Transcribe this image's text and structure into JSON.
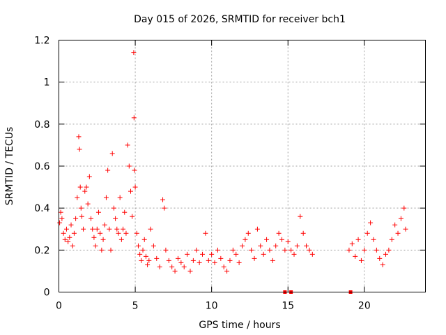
{
  "chart_data": {
    "type": "scatter",
    "title": "Day 015 of 2026, SRMTID for receiver bch1",
    "xlabel": "GPS time / hours",
    "ylabel": "SRMTID / TECUs",
    "xlim": [
      0,
      24
    ],
    "ylim": [
      0,
      1.2
    ],
    "xticks": [
      0,
      5,
      10,
      15,
      20
    ],
    "xtick_labels": [
      "0",
      "5",
      "10",
      "15",
      "20"
    ],
    "yticks": [
      0,
      0.2,
      0.4,
      0.6,
      0.8,
      1.0,
      1.2
    ],
    "ytick_labels": [
      "0",
      "0.2",
      "0.4",
      "0.6",
      "0.8",
      "1",
      "1.2"
    ],
    "grid": true,
    "marker": "+",
    "series": [
      {
        "name": "SRMTID",
        "color": "#ff0000",
        "x": [
          0.05,
          0.12,
          0.2,
          0.3,
          0.4,
          0.5,
          0.6,
          0.7,
          0.8,
          0.9,
          1.0,
          1.1,
          1.2,
          1.3,
          1.35,
          1.4,
          1.45,
          1.5,
          1.6,
          1.7,
          1.8,
          1.9,
          2.0,
          2.1,
          2.2,
          2.3,
          2.4,
          2.5,
          2.6,
          2.7,
          2.8,
          2.9,
          3.0,
          3.1,
          3.2,
          3.3,
          3.4,
          3.5,
          3.6,
          3.7,
          3.8,
          3.9,
          4.0,
          4.1,
          4.2,
          4.3,
          4.4,
          4.5,
          4.6,
          4.7,
          4.8,
          4.9,
          4.92,
          4.95,
          5.0,
          5.1,
          5.2,
          5.3,
          5.4,
          5.5,
          5.6,
          5.7,
          5.8,
          5.9,
          6.0,
          6.2,
          6.4,
          6.6,
          6.8,
          6.9,
          7.0,
          7.2,
          7.4,
          7.6,
          7.8,
          8.0,
          8.2,
          8.4,
          8.6,
          8.8,
          9.0,
          9.2,
          9.4,
          9.6,
          9.8,
          10.0,
          10.2,
          10.4,
          10.6,
          10.8,
          11.0,
          11.2,
          11.4,
          11.6,
          11.8,
          12.0,
          12.2,
          12.4,
          12.6,
          12.8,
          13.0,
          13.2,
          13.4,
          13.6,
          13.8,
          14.0,
          14.2,
          14.4,
          14.6,
          14.8,
          15.0,
          15.2,
          15.4,
          15.6,
          15.8,
          16.0,
          16.2,
          16.4,
          16.6,
          19.0,
          19.2,
          19.4,
          19.6,
          19.8,
          20.0,
          20.2,
          20.4,
          20.6,
          20.8,
          21.0,
          21.2,
          21.4,
          21.6,
          21.8,
          22.0,
          22.2,
          22.4,
          22.6,
          22.7
        ],
        "y": [
          0.33,
          0.38,
          0.35,
          0.28,
          0.25,
          0.3,
          0.24,
          0.26,
          0.32,
          0.22,
          0.28,
          0.35,
          0.45,
          0.74,
          0.68,
          0.5,
          0.4,
          0.36,
          0.3,
          0.48,
          0.5,
          0.42,
          0.55,
          0.35,
          0.3,
          0.26,
          0.22,
          0.3,
          0.38,
          0.28,
          0.2,
          0.25,
          0.32,
          0.45,
          0.58,
          0.3,
          0.2,
          0.66,
          0.4,
          0.35,
          0.3,
          0.28,
          0.45,
          0.25,
          0.3,
          0.38,
          0.28,
          0.7,
          0.6,
          0.48,
          0.36,
          1.14,
          0.83,
          0.58,
          0.5,
          0.28,
          0.22,
          0.18,
          0.15,
          0.2,
          0.25,
          0.17,
          0.13,
          0.15,
          0.3,
          0.22,
          0.16,
          0.12,
          0.44,
          0.4,
          0.2,
          0.15,
          0.12,
          0.1,
          0.16,
          0.14,
          0.12,
          0.18,
          0.1,
          0.15,
          0.2,
          0.14,
          0.18,
          0.28,
          0.15,
          0.18,
          0.14,
          0.2,
          0.16,
          0.12,
          0.1,
          0.15,
          0.2,
          0.18,
          0.14,
          0.22,
          0.25,
          0.28,
          0.2,
          0.16,
          0.3,
          0.22,
          0.18,
          0.25,
          0.2,
          0.15,
          0.22,
          0.28,
          0.25,
          0.2,
          0.24,
          0.2,
          0.18,
          0.22,
          0.36,
          0.28,
          0.22,
          0.2,
          0.18,
          0.2,
          0.23,
          0.17,
          0.25,
          0.15,
          0.2,
          0.28,
          0.33,
          0.25,
          0.2,
          0.16,
          0.13,
          0.18,
          0.2,
          0.25,
          0.32,
          0.28,
          0.35,
          0.4,
          0.3
        ],
        "zero_markers_x": [
          14.8,
          15.2,
          19.1
        ]
      }
    ]
  }
}
